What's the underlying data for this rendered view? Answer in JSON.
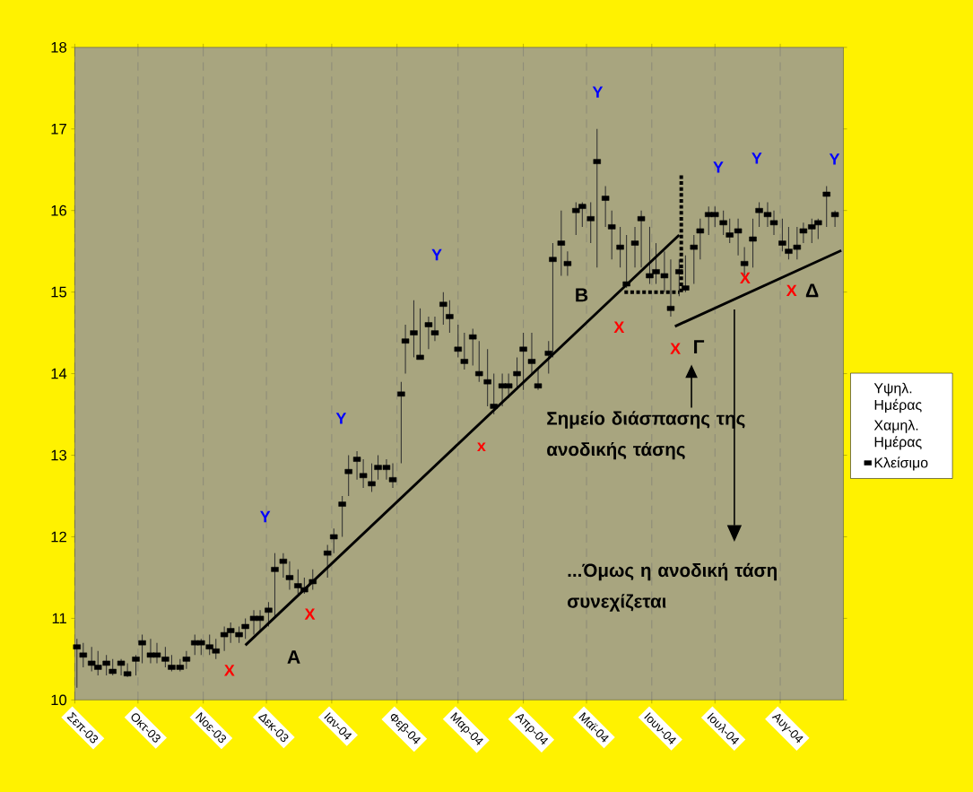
{
  "chart_data": {
    "type": "scatter",
    "grid": "x",
    "legend": "right",
    "xlim": [
      "2003-09-01",
      "2004-08-31"
    ],
    "ylim": [
      10,
      18
    ],
    "yticks": [
      10,
      11,
      12,
      13,
      14,
      15,
      16,
      17,
      18
    ],
    "xticks": [
      {
        "value": "2003-09-01",
        "label": "Σεπ-03"
      },
      {
        "value": "2003-10-01",
        "label": "Οκτ-03"
      },
      {
        "value": "2003-11-01",
        "label": "Νοε-03"
      },
      {
        "value": "2003-12-01",
        "label": "Δεκ-03"
      },
      {
        "value": "2004-01-01",
        "label": "Ιαν-04"
      },
      {
        "value": "2004-02-01",
        "label": "Φεβ-04"
      },
      {
        "value": "2004-03-01",
        "label": "Μαρ-04"
      },
      {
        "value": "2004-04-01",
        "label": "Απρ-04"
      },
      {
        "value": "2004-05-01",
        "label": "Μαϊ-04"
      },
      {
        "value": "2004-06-01",
        "label": "Ιουν-04"
      },
      {
        "value": "2004-07-01",
        "label": "Ιουλ-04"
      },
      {
        "value": "2004-08-01",
        "label": "Αυγ-04"
      }
    ],
    "x": [
      "2003-09-02",
      "2003-09-05",
      "2003-09-09",
      "2003-09-12",
      "2003-09-16",
      "2003-09-19",
      "2003-09-23",
      "2003-09-26",
      "2003-09-30",
      "2003-10-03",
      "2003-10-07",
      "2003-10-10",
      "2003-10-14",
      "2003-10-17",
      "2003-10-21",
      "2003-10-24",
      "2003-10-28",
      "2003-10-31",
      "2003-11-04",
      "2003-11-07",
      "2003-11-11",
      "2003-11-14",
      "2003-11-18",
      "2003-11-21",
      "2003-11-25",
      "2003-11-28",
      "2003-12-02",
      "2003-12-05",
      "2003-12-09",
      "2003-12-12",
      "2003-12-16",
      "2003-12-19",
      "2003-12-23",
      "2003-12-30",
      "2004-01-02",
      "2004-01-06",
      "2004-01-09",
      "2004-01-13",
      "2004-01-16",
      "2004-01-20",
      "2004-01-23",
      "2004-01-27",
      "2004-01-30",
      "2004-02-03",
      "2004-02-05",
      "2004-02-09",
      "2004-02-12",
      "2004-02-16",
      "2004-02-19",
      "2004-02-23",
      "2004-02-26",
      "2004-03-01",
      "2004-03-04",
      "2004-03-08",
      "2004-03-11",
      "2004-03-15",
      "2004-03-18",
      "2004-03-22",
      "2004-03-25",
      "2004-03-29",
      "2004-04-01",
      "2004-04-05",
      "2004-04-08",
      "2004-04-13",
      "2004-04-15",
      "2004-04-19",
      "2004-04-22",
      "2004-04-26",
      "2004-04-29",
      "2004-05-03",
      "2004-05-06",
      "2004-05-10",
      "2004-05-13",
      "2004-05-17",
      "2004-05-20",
      "2004-05-24",
      "2004-05-27",
      "2004-05-31",
      "2004-06-03",
      "2004-06-07",
      "2004-06-10",
      "2004-06-14",
      "2004-06-17",
      "2004-06-21",
      "2004-06-24",
      "2004-06-28",
      "2004-07-01",
      "2004-07-05",
      "2004-07-08",
      "2004-07-12",
      "2004-07-15",
      "2004-07-19",
      "2004-07-22",
      "2004-07-26",
      "2004-07-29",
      "2004-08-02",
      "2004-08-05",
      "2004-08-09",
      "2004-08-12",
      "2004-08-16",
      "2004-08-19",
      "2004-08-23",
      "2004-08-27"
    ],
    "series": [
      {
        "name": "Κλείσιμο",
        "color": "#000000",
        "marker": "square",
        "values": [
          10.65,
          10.55,
          10.45,
          10.4,
          10.45,
          10.35,
          10.45,
          10.32,
          10.5,
          10.7,
          10.55,
          10.55,
          10.5,
          10.4,
          10.4,
          10.5,
          10.7,
          10.7,
          10.65,
          10.6,
          10.8,
          10.85,
          10.8,
          10.9,
          11.0,
          11.0,
          11.1,
          11.6,
          11.7,
          11.5,
          11.4,
          11.35,
          11.45,
          11.8,
          12.0,
          12.4,
          12.8,
          12.95,
          12.75,
          12.65,
          12.85,
          12.85,
          12.7,
          13.75,
          14.4,
          14.5,
          14.2,
          14.6,
          14.5,
          14.85,
          14.7,
          14.3,
          14.15,
          14.45,
          14.0,
          13.9,
          13.6,
          13.85,
          13.85,
          14.0,
          14.3,
          14.15,
          13.85,
          14.25,
          15.4,
          15.6,
          15.35,
          16.0,
          16.05,
          15.9,
          16.6,
          16.15,
          15.8,
          15.55,
          15.1,
          15.6,
          15.9,
          15.2,
          15.25,
          15.2,
          14.8,
          15.25,
          15.05,
          15.55,
          15.75,
          15.95,
          15.95,
          15.85,
          15.7,
          15.75,
          15.35,
          15.65,
          16.0,
          15.95,
          15.85,
          15.6,
          15.5,
          15.55,
          15.75,
          15.8,
          15.85,
          16.2,
          15.95
        ],
        "errors": [
          [
            10.15,
            10.75
          ],
          [
            10.4,
            10.7
          ],
          [
            10.35,
            10.65
          ],
          [
            10.3,
            10.6
          ],
          [
            10.3,
            10.55
          ],
          [
            10.3,
            10.5
          ],
          [
            10.3,
            10.5
          ],
          [
            10.28,
            10.45
          ],
          [
            10.3,
            10.55
          ],
          [
            10.45,
            10.8
          ],
          [
            10.45,
            10.75
          ],
          [
            10.45,
            10.7
          ],
          [
            10.4,
            10.65
          ],
          [
            10.35,
            10.55
          ],
          [
            10.35,
            10.5
          ],
          [
            10.38,
            10.6
          ],
          [
            10.55,
            10.8
          ],
          [
            10.55,
            10.75
          ],
          [
            10.55,
            10.8
          ],
          [
            10.5,
            10.75
          ],
          [
            10.6,
            10.9
          ],
          [
            10.7,
            10.95
          ],
          [
            10.7,
            10.9
          ],
          [
            10.75,
            11.0
          ],
          [
            10.8,
            11.1
          ],
          [
            10.85,
            11.1
          ],
          [
            10.9,
            11.2
          ],
          [
            11.0,
            11.8
          ],
          [
            11.5,
            11.8
          ],
          [
            11.35,
            11.7
          ],
          [
            11.3,
            11.6
          ],
          [
            11.3,
            11.5
          ],
          [
            11.35,
            11.6
          ],
          [
            11.5,
            11.9
          ],
          [
            11.8,
            12.1
          ],
          [
            12.0,
            12.5
          ],
          [
            12.5,
            13.0
          ],
          [
            12.7,
            13.05
          ],
          [
            12.6,
            12.95
          ],
          [
            12.55,
            12.9
          ],
          [
            12.7,
            13.0
          ],
          [
            12.7,
            12.95
          ],
          [
            12.6,
            12.9
          ],
          [
            12.9,
            13.9
          ],
          [
            14.0,
            14.6
          ],
          [
            14.2,
            14.9
          ],
          [
            14.2,
            14.8
          ],
          [
            14.3,
            14.7
          ],
          [
            14.4,
            14.7
          ],
          [
            14.6,
            15.0
          ],
          [
            14.5,
            14.9
          ],
          [
            14.2,
            14.6
          ],
          [
            14.05,
            14.5
          ],
          [
            14.1,
            14.55
          ],
          [
            13.9,
            14.4
          ],
          [
            13.6,
            14.3
          ],
          [
            13.5,
            14.0
          ],
          [
            13.6,
            14.0
          ],
          [
            13.7,
            14.0
          ],
          [
            13.8,
            14.2
          ],
          [
            13.8,
            14.5
          ],
          [
            14.0,
            14.5
          ],
          [
            13.8,
            14.05
          ],
          [
            14.0,
            14.4
          ],
          [
            14.2,
            15.6
          ],
          [
            15.2,
            16.0
          ],
          [
            15.2,
            15.5
          ],
          [
            15.7,
            16.1
          ],
          [
            15.8,
            16.1
          ],
          [
            15.6,
            16.1
          ],
          [
            15.3,
            17.0
          ],
          [
            15.8,
            16.3
          ],
          [
            15.4,
            16.0
          ],
          [
            15.3,
            15.8
          ],
          [
            15.05,
            15.7
          ],
          [
            15.3,
            15.8
          ],
          [
            15.3,
            16.0
          ],
          [
            15.1,
            15.8
          ],
          [
            15.1,
            15.6
          ],
          [
            15.0,
            15.5
          ],
          [
            14.7,
            15.4
          ],
          [
            14.95,
            15.4
          ],
          [
            15.0,
            15.45
          ],
          [
            15.1,
            15.7
          ],
          [
            15.4,
            15.9
          ],
          [
            15.7,
            16.05
          ],
          [
            15.8,
            16.05
          ],
          [
            15.7,
            16.0
          ],
          [
            15.6,
            15.9
          ],
          [
            15.45,
            15.9
          ],
          [
            15.2,
            15.55
          ],
          [
            15.3,
            15.9
          ],
          [
            15.8,
            16.1
          ],
          [
            15.8,
            16.1
          ],
          [
            15.7,
            16.0
          ],
          [
            15.5,
            15.9
          ],
          [
            15.4,
            15.8
          ],
          [
            15.4,
            15.8
          ],
          [
            15.6,
            15.85
          ],
          [
            15.6,
            15.9
          ],
          [
            15.65,
            15.9
          ],
          [
            15.8,
            16.3
          ],
          [
            15.8,
            16.0
          ]
        ]
      },
      {
        "type": "line",
        "color": "#000000",
        "x": [
          "2003-11-21",
          "2004-06-14"
        ],
        "values": [
          10.67,
          15.7
        ]
      },
      {
        "type": "line",
        "color": "#000000",
        "x": [
          "2004-06-12",
          "2004-08-30"
        ],
        "values": [
          14.58,
          15.51
        ]
      },
      {
        "type": "line",
        "color": "#000000",
        "line_style": "dotted",
        "x": [
          "2004-05-19",
          "2004-06-14"
        ],
        "values": [
          15.0,
          15.0
        ]
      },
      {
        "type": "line",
        "color": "#000000",
        "line_style": "dotted",
        "x": [
          "2004-06-15",
          "2004-06-15"
        ],
        "values": [
          15.0,
          16.45
        ]
      }
    ],
    "annotations": [
      "Y",
      "X",
      "A",
      "X",
      "Y",
      "Y",
      "x",
      "B",
      "Y",
      "X",
      "X",
      "Γ",
      "Y",
      "X",
      "Y",
      "X",
      "Δ",
      "Y",
      "Σημείο διάσπασης της ανοδικής τάσης",
      "...Όμως η ανοδική τάση συνεχίζεται",
      "Υψηλ. Ημέρας",
      "Χαμηλ. Ημέρας"
    ]
  }
}
